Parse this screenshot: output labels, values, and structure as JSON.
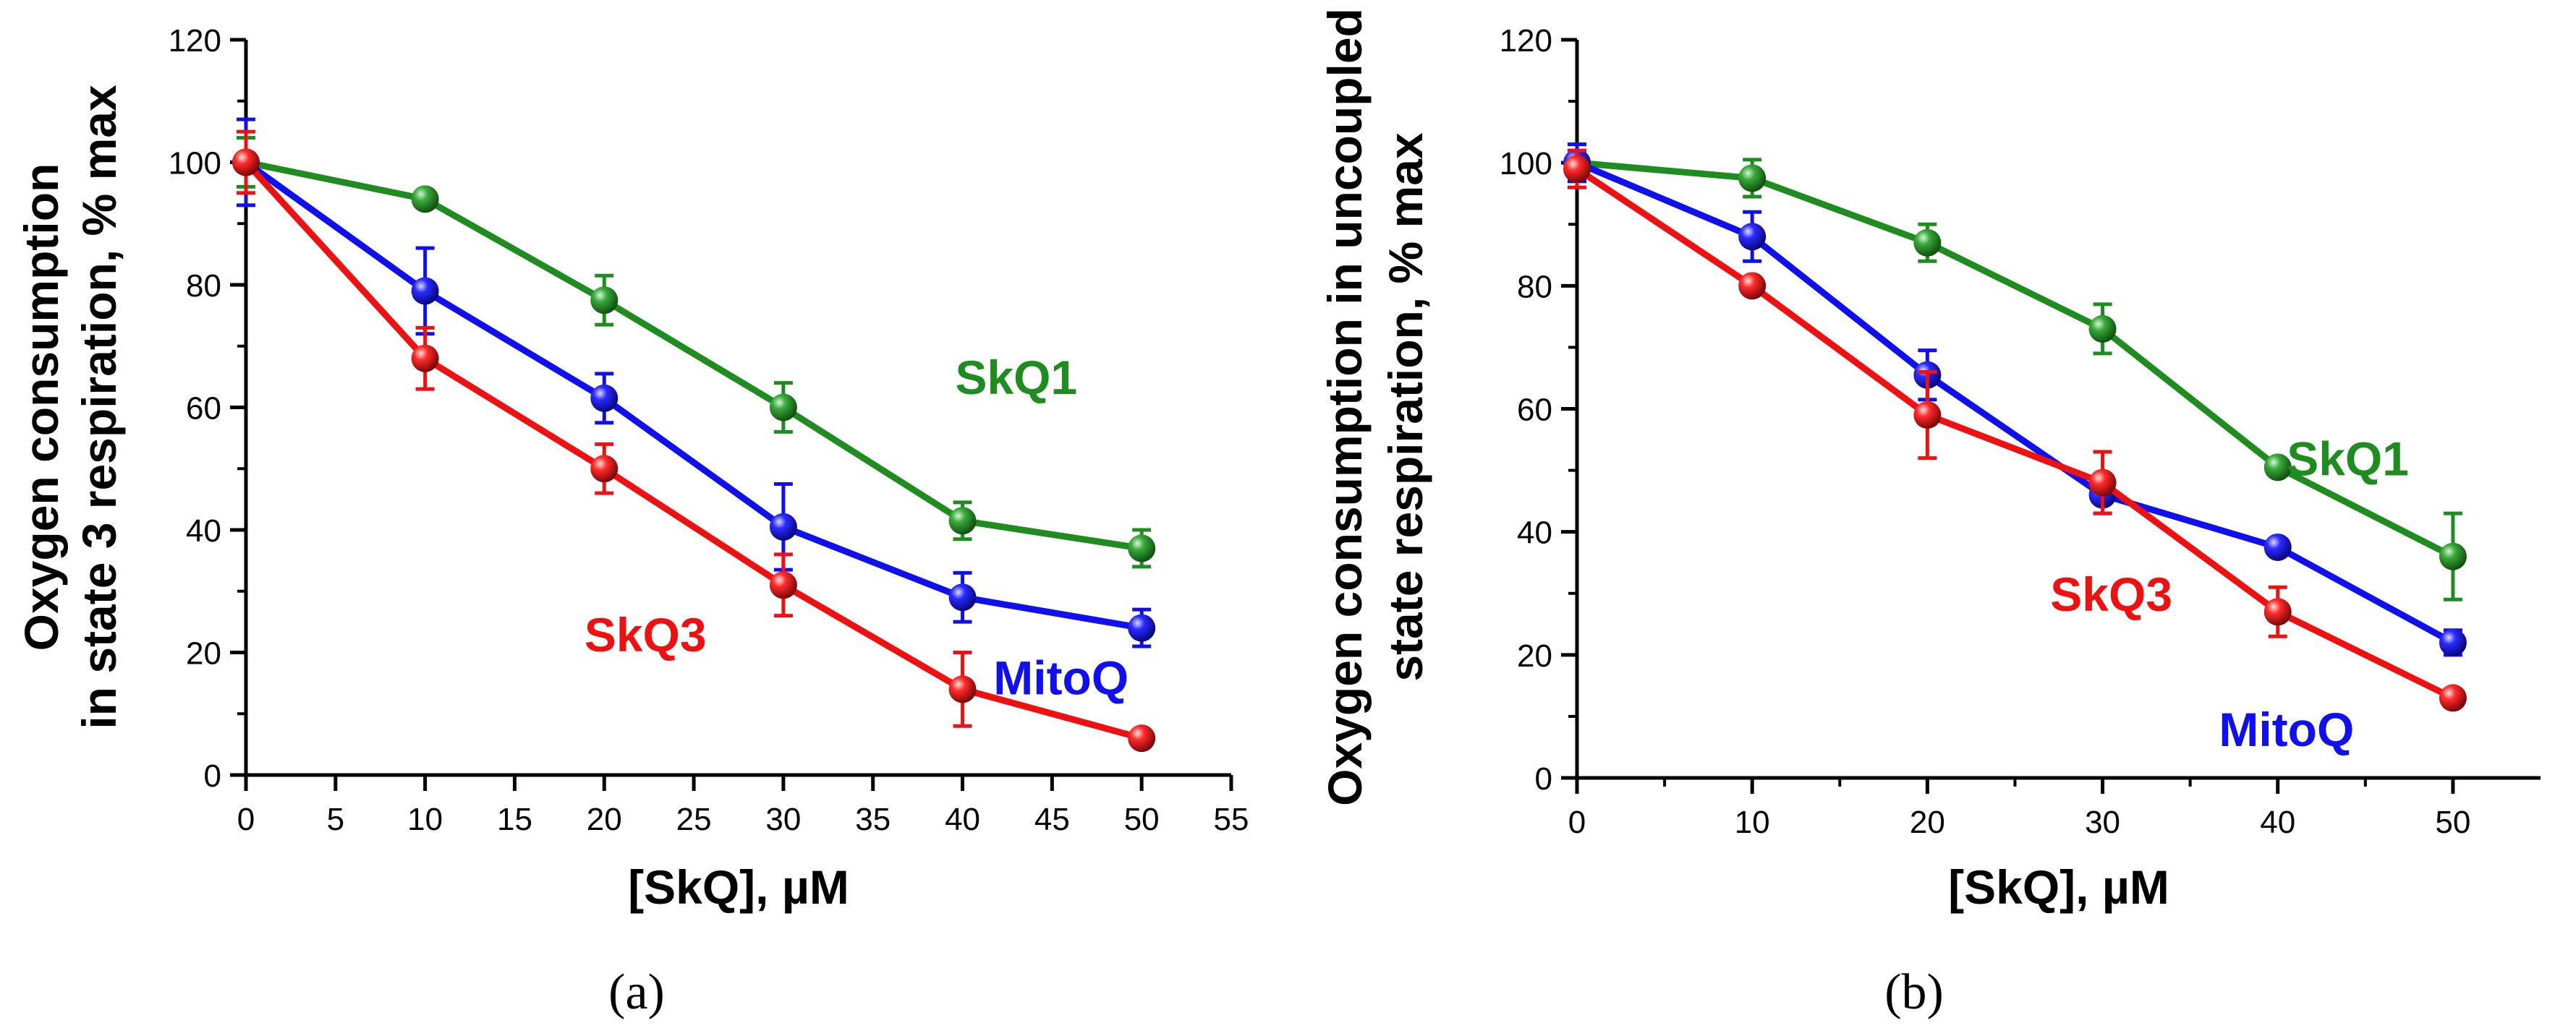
{
  "chart_data": [
    {
      "type": "line",
      "panel_label": "(a)",
      "xlabel": "[SkQ], µM",
      "ylabel_lines": [
        "Oxygen consumption",
        "in state 3 respiration, % max"
      ],
      "xlim": [
        0,
        55
      ],
      "ylim": [
        0,
        120
      ],
      "xticks": [
        0,
        5,
        10,
        15,
        20,
        25,
        30,
        35,
        40,
        45,
        50,
        55
      ],
      "yticks": [
        0,
        20,
        40,
        60,
        80,
        100,
        120
      ],
      "x": [
        0,
        10,
        20,
        30,
        40,
        50
      ],
      "series": [
        {
          "name": "SkQ1",
          "color": "#1e8c1e",
          "values": [
            100,
            94,
            77.5,
            60,
            41.5,
            37
          ],
          "errors": [
            4,
            1,
            4,
            4,
            3,
            3
          ]
        },
        {
          "name": "MitoQ",
          "color": "#1010ee",
          "values": [
            100,
            79,
            61.5,
            40.5,
            29,
            24
          ],
          "errors": [
            7,
            7,
            4,
            7,
            4,
            3
          ]
        },
        {
          "name": "SkQ3",
          "color": "#ee1111",
          "values": [
            100,
            68,
            50,
            31,
            14,
            6
          ],
          "errors": [
            5,
            5,
            4,
            5,
            6,
            1
          ]
        }
      ],
      "labels": [
        {
          "series": "SkQ1",
          "text": "SkQ1",
          "x": 43,
          "y": 65
        },
        {
          "series": "MitoQ",
          "text": "MitoQ",
          "x": 45.5,
          "y": 16
        },
        {
          "series": "SkQ3",
          "text": "SkQ3",
          "x": 22.3,
          "y": 23
        }
      ]
    },
    {
      "type": "line",
      "panel_label": "(b)",
      "xlabel": "[SkQ], µM",
      "ylabel_lines": [
        "Oxygen consumption in uncoupled",
        "state respiration, % max"
      ],
      "xlim": [
        0,
        55
      ],
      "ylim": [
        0,
        120
      ],
      "xticks": [
        0,
        10,
        20,
        30,
        40,
        50
      ],
      "xticks_minor": [
        5,
        15,
        25,
        35,
        45
      ],
      "yticks": [
        0,
        20,
        40,
        60,
        80,
        100,
        120
      ],
      "x": [
        0,
        10,
        20,
        30,
        40,
        50
      ],
      "series": [
        {
          "name": "SkQ1",
          "color": "#1e8c1e",
          "values": [
            100,
            97.5,
            87,
            73,
            50.5,
            36
          ],
          "errors": [
            3,
            3,
            3,
            4,
            1,
            7
          ]
        },
        {
          "name": "MitoQ",
          "color": "#1010ee",
          "values": [
            100,
            88,
            65.5,
            46,
            37.5,
            22
          ],
          "errors": [
            3,
            4,
            4,
            3,
            1,
            2
          ]
        },
        {
          "name": "SkQ3",
          "color": "#ee1111",
          "values": [
            99,
            80,
            59,
            48,
            27,
            13
          ],
          "errors": [
            3,
            1,
            7,
            5,
            4,
            1
          ]
        }
      ],
      "labels": [
        {
          "series": "SkQ1",
          "text": "SkQ1",
          "x": 44,
          "y": 52
        },
        {
          "series": "MitoQ",
          "text": "MitoQ",
          "x": 40.5,
          "y": 8
        },
        {
          "series": "SkQ3",
          "text": "SkQ3",
          "x": 30.5,
          "y": 30
        }
      ]
    }
  ]
}
